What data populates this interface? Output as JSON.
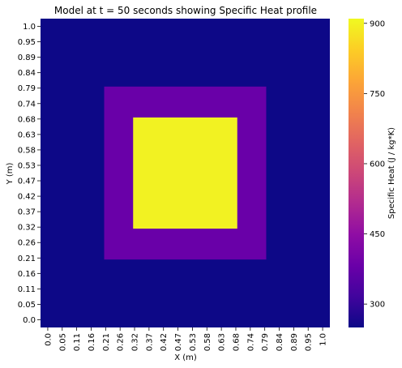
{
  "chart_data": {
    "type": "heatmap",
    "title": "Model at t = 50 seconds showing Specific Heat profile",
    "xlabel": "X (m)",
    "ylabel": "Y (m)",
    "xticks": [
      "0.0",
      "0.05",
      "0.11",
      "0.16",
      "0.21",
      "0.26",
      "0.32",
      "0.37",
      "0.42",
      "0.47",
      "0.53",
      "0.58",
      "0.63",
      "0.68",
      "0.74",
      "0.79",
      "0.84",
      "0.89",
      "0.95",
      "1.0"
    ],
    "yticks": [
      "0.0",
      "0.05",
      "0.11",
      "0.16",
      "0.21",
      "0.26",
      "0.32",
      "0.37",
      "0.42",
      "0.47",
      "0.53",
      "0.58",
      "0.63",
      "0.68",
      "0.74",
      "0.79",
      "0.84",
      "0.89",
      "0.95",
      "1.0"
    ],
    "xlim": [
      0,
      1
    ],
    "ylim": [
      0,
      1
    ],
    "background_value": 250,
    "regions": [
      {
        "x": [
          0.22,
          0.78
        ],
        "y": [
          0.22,
          0.78
        ],
        "value": 380
      },
      {
        "x": [
          0.32,
          0.68
        ],
        "y": [
          0.32,
          0.68
        ],
        "value": 900
      }
    ],
    "colorbar": {
      "label": "Specific Heat (J / kg*K)",
      "ticks": [
        300,
        450,
        600,
        750,
        900
      ],
      "range": [
        250,
        910
      ],
      "colormap": "plasma"
    }
  }
}
